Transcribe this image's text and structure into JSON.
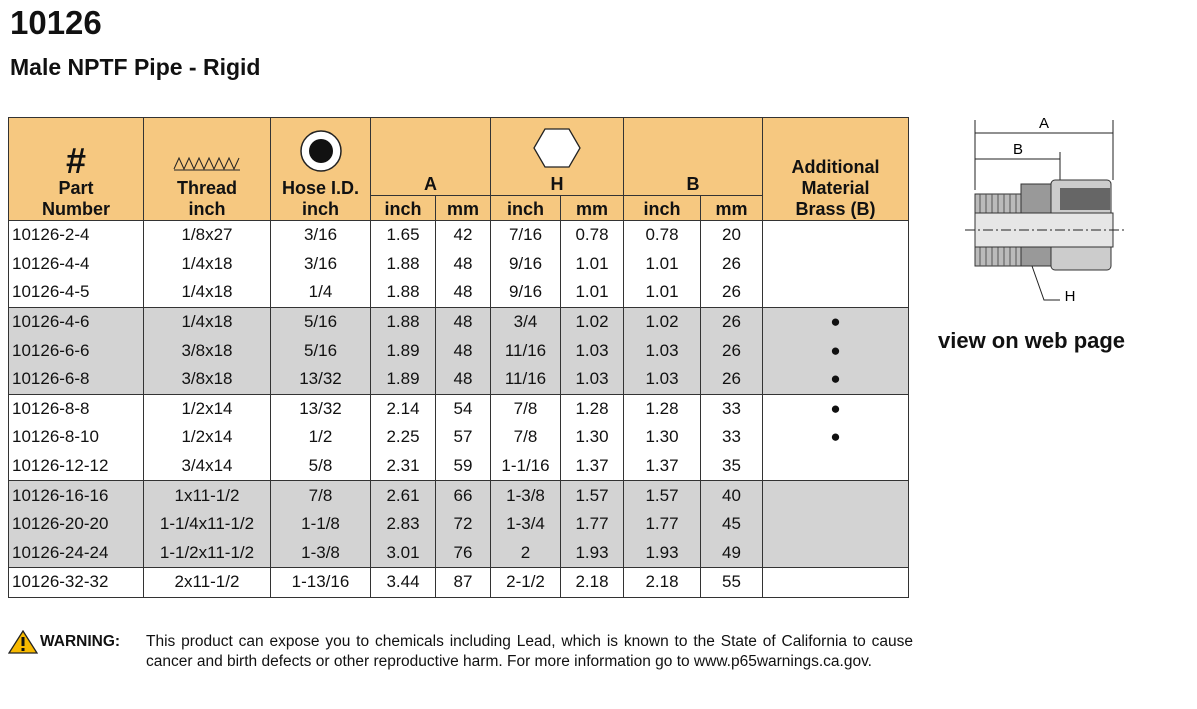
{
  "header": {
    "title": "10126",
    "subtitle": "Male NPTF Pipe - Rigid"
  },
  "table": {
    "header": {
      "part": [
        "#",
        "Part",
        "Number"
      ],
      "thread": [
        "Thread",
        "inch"
      ],
      "hose": [
        "Hose I.D.",
        "inch"
      ],
      "a": "A",
      "h": "H",
      "b": "B",
      "units": [
        "inch",
        "mm",
        "inch",
        "mm",
        "inch",
        "mm"
      ],
      "brass": [
        "Additional",
        "Material",
        "Brass (B)"
      ]
    },
    "rows": [
      [
        "10126-2-4",
        "1/8x27",
        "3/16",
        "1.65",
        "42",
        "7/16",
        "0.78",
        "0.78",
        "20",
        null
      ],
      [
        "10126-4-4",
        "1/4x18",
        "3/16",
        "1.88",
        "48",
        "9/16",
        "1.01",
        "1.01",
        "26",
        null
      ],
      [
        "10126-4-5",
        "1/4x18",
        "1/4",
        "1.88",
        "48",
        "9/16",
        "1.01",
        "1.01",
        "26",
        null
      ],
      [
        "10126-4-6",
        "1/4x18",
        "5/16",
        "1.88",
        "48",
        "3/4",
        "1.02",
        "1.02",
        "26",
        "●"
      ],
      [
        "10126-6-6",
        "3/8x18",
        "5/16",
        "1.89",
        "48",
        "11/16",
        "1.03",
        "1.03",
        "26",
        "●"
      ],
      [
        "10126-6-8",
        "3/8x18",
        "13/32",
        "1.89",
        "48",
        "11/16",
        "1.03",
        "1.03",
        "26",
        "●"
      ],
      [
        "10126-8-8",
        "1/2x14",
        "13/32",
        "2.14",
        "54",
        "7/8",
        "1.28",
        "1.28",
        "33",
        "●"
      ],
      [
        "10126-8-10",
        "1/2x14",
        "1/2",
        "2.25",
        "57",
        "7/8",
        "1.30",
        "1.30",
        "33",
        "●"
      ],
      [
        "10126-12-12",
        "3/4x14",
        "5/8",
        "2.31",
        "59",
        "1-1/16",
        "1.37",
        "1.37",
        "35",
        null
      ],
      [
        "10126-16-16",
        "1x11-1/2",
        "7/8",
        "2.61",
        "66",
        "1-3/8",
        "1.57",
        "1.57",
        "40",
        null
      ],
      [
        "10126-20-20",
        "1-1/4x11-1/2",
        "1-1/8",
        "2.83",
        "72",
        "1-3/4",
        "1.77",
        "1.77",
        "45",
        null
      ],
      [
        "10126-24-24",
        "1-1/2x11-1/2",
        "1-3/8",
        "3.01",
        "76",
        "2",
        "1.93",
        "1.93",
        "49",
        null
      ],
      [
        "10126-32-32",
        "2x11-1/2",
        "1-13/16",
        "3.44",
        "87",
        "2-1/2",
        "2.18",
        "2.18",
        "55",
        null
      ]
    ]
  },
  "figure": {
    "labels": [
      "A",
      "B",
      "H"
    ],
    "caption": "view on web page"
  },
  "warning": {
    "label": "WARNING:",
    "text": "This product can expose you to chemicals including Lead, which is known to the State of California to cause cancer and birth defects or other reproductive harm.  For more information go to www.p65warnings.ca.gov."
  }
}
